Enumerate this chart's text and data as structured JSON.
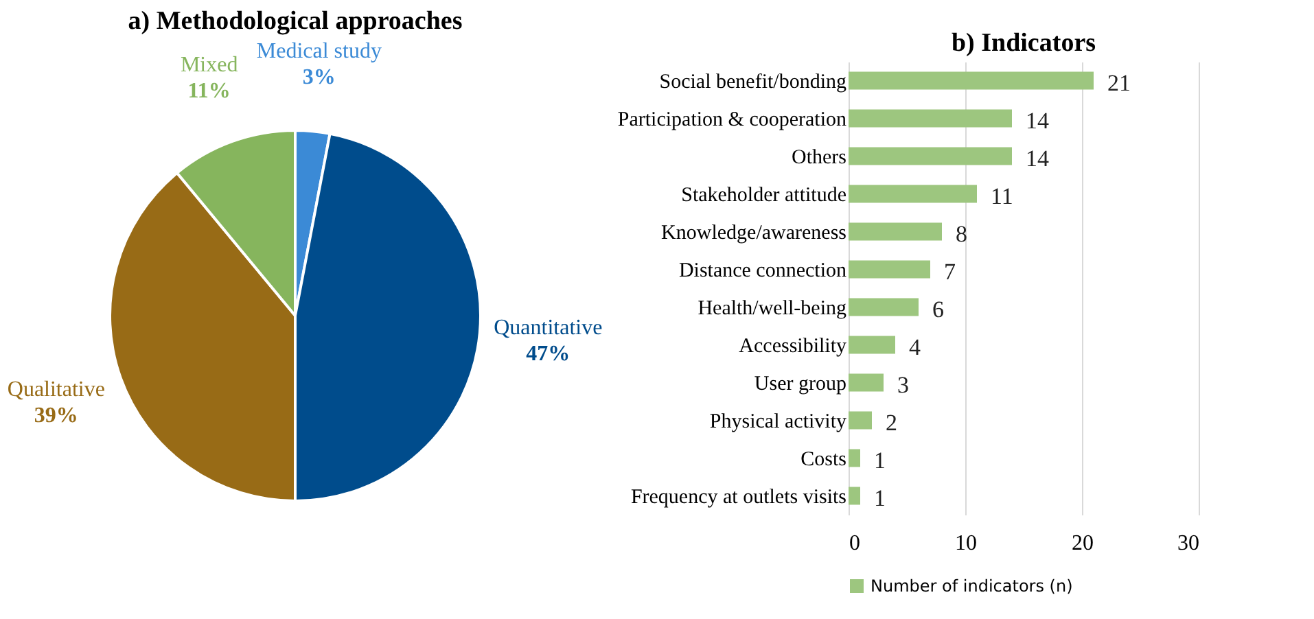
{
  "chart_data": [
    {
      "type": "pie",
      "title": "a) Methodological approaches",
      "categories": [
        "Medical study",
        "Quantitative",
        "Qualitative",
        "Mixed"
      ],
      "values": [
        3,
        47,
        39,
        11
      ],
      "colors": [
        "#3b8ad6",
        "#004c8c",
        "#986b16",
        "#86b55d"
      ],
      "value_labels": [
        "3%",
        "47%",
        "39%",
        "11%"
      ]
    },
    {
      "type": "bar",
      "title": "b) Indicators",
      "orientation": "horizontal",
      "categories": [
        "Social benefit/bonding",
        "Participation & cooperation",
        "Others",
        "Stakeholder attitude",
        "Knowledge/awareness",
        "Distance connection",
        "Health/well-being",
        "Accessibility",
        "User group",
        "Physical activity",
        "Costs",
        "Frequency at outlets visits"
      ],
      "series": [
        {
          "name": "Number of indicators (n)",
          "color": "#9dc67f",
          "values": [
            21,
            14,
            14,
            11,
            8,
            7,
            6,
            4,
            3,
            2,
            1,
            1
          ]
        }
      ],
      "xlim": [
        0,
        30
      ],
      "xticks": [
        0,
        10,
        20,
        30
      ],
      "grid": "x",
      "legend": "bottom",
      "data_labels": true
    }
  ]
}
